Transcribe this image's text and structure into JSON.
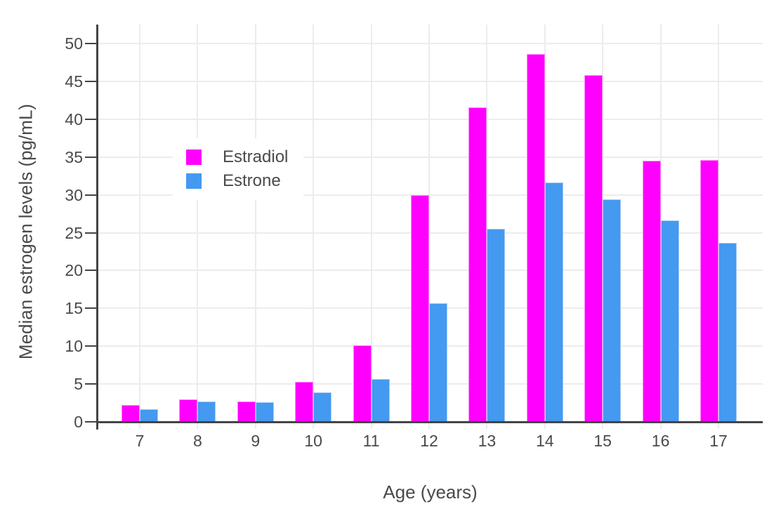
{
  "chart_data": {
    "type": "bar",
    "title": "",
    "xlabel": "Age (years)",
    "ylabel": "Median estrogen levels (pg/mL)",
    "categories": [
      "7",
      "8",
      "9",
      "10",
      "11",
      "12",
      "13",
      "14",
      "15",
      "16",
      "17"
    ],
    "series": [
      {
        "name": "Estradiol",
        "color": "#FF00FE",
        "edge_color": "#FF86F8",
        "values": [
          2.2,
          3.0,
          2.7,
          5.3,
          10.1,
          30.0,
          41.6,
          48.6,
          45.8,
          34.5,
          34.6
        ]
      },
      {
        "name": "Estrone",
        "color": "#4499F0",
        "edge_color": "#A9CCF6",
        "values": [
          1.7,
          2.7,
          2.6,
          3.9,
          5.7,
          15.7,
          25.5,
          31.6,
          29.4,
          26.6,
          23.7
        ]
      }
    ],
    "ylim": [
      0,
      52.5
    ],
    "yticks": [
      0,
      5,
      10,
      15,
      20,
      25,
      30,
      35,
      40,
      45,
      50
    ],
    "grid": true,
    "legend_position": "inside-top-left",
    "colors": {
      "axis": "#444444",
      "grid": "#ECECEC",
      "text": "#4A4A4A",
      "background": "#FFFFFF"
    }
  }
}
